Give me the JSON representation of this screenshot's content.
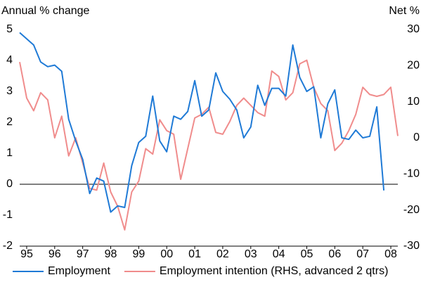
{
  "chart_data": {
    "type": "line",
    "ylabel": "Annual % change",
    "y2label": "Net %",
    "x": [
      1995.25,
      1995.5,
      1995.75,
      1996,
      1996.25,
      1996.5,
      1996.75,
      1997,
      1997.25,
      1997.5,
      1997.75,
      1998,
      1998.25,
      1998.5,
      1998.75,
      1999,
      1999.25,
      1999.5,
      1999.75,
      2000,
      2000.25,
      2000.5,
      2000.75,
      2001,
      2001.25,
      2001.5,
      2001.75,
      2002,
      2002.25,
      2002.5,
      2002.75,
      2003,
      2003.25,
      2003.5,
      2003.75,
      2004,
      2004.25,
      2004.5,
      2004.75,
      2005,
      2005.25,
      2005.5,
      2005.75,
      2006,
      2006.25,
      2006.5,
      2006.75,
      2007,
      2007.25,
      2007.5,
      2007.75,
      2008,
      2008.25,
      2008.5,
      2008.75
    ],
    "xlim": [
      1995.25,
      2008.75
    ],
    "xticks": [
      {
        "value": 1995.5,
        "label": "95"
      },
      {
        "value": 1996.5,
        "label": "96"
      },
      {
        "value": 1997.5,
        "label": "97"
      },
      {
        "value": 1998.5,
        "label": "98"
      },
      {
        "value": 1999.5,
        "label": "99"
      },
      {
        "value": 2000.5,
        "label": "00"
      },
      {
        "value": 2001.5,
        "label": "01"
      },
      {
        "value": 2002.5,
        "label": "02"
      },
      {
        "value": 2003.5,
        "label": "03"
      },
      {
        "value": 2004.5,
        "label": "04"
      },
      {
        "value": 2005.5,
        "label": "05"
      },
      {
        "value": 2006.5,
        "label": "06"
      },
      {
        "value": 2007.5,
        "label": "07"
      },
      {
        "value": 2008.5,
        "label": "08"
      }
    ],
    "ylim": [
      -2,
      5
    ],
    "yticks": [
      -2,
      -1,
      0,
      1,
      2,
      3,
      4,
      5
    ],
    "y2lim": [
      -30,
      30
    ],
    "y2ticks": [
      -30,
      -20,
      -10,
      0,
      10,
      20,
      30
    ],
    "zero_line": 0,
    "legend": "bottom",
    "series": [
      {
        "name": "Employment",
        "color": "#1f7ad6",
        "values": [
          4.9,
          4.7,
          4.5,
          3.95,
          3.8,
          3.85,
          3.65,
          2.1,
          1.4,
          0.8,
          -0.3,
          0.2,
          0.1,
          -0.9,
          -0.7,
          -0.75,
          0.6,
          1.35,
          1.55,
          2.85,
          1.4,
          1.05,
          2.2,
          2.1,
          2.35,
          3.35,
          2.2,
          2.4,
          3.6,
          3.0,
          2.75,
          2.4,
          1.5,
          1.85,
          3.2,
          2.55,
          3.1,
          3.1,
          2.85,
          4.5,
          3.45,
          3.0,
          3.15,
          1.5,
          2.6,
          3.05,
          1.5,
          1.45,
          1.75,
          1.5,
          1.55,
          2.5,
          -0.2,
          null,
          null
        ]
      },
      {
        "name": "Employment intention (RHS, advanced 2 qtrs)",
        "color": "#f08c8c",
        "axis": "y2",
        "values": [
          21,
          11,
          7.5,
          12.5,
          10.5,
          0,
          6,
          -5,
          0,
          -7,
          -14,
          -14.5,
          -7,
          -15,
          -19,
          -25.5,
          -15,
          -12,
          -3,
          -4.5,
          5,
          2,
          1,
          -11.5,
          -3,
          5.5,
          6.5,
          8.5,
          1.5,
          1,
          4.5,
          9,
          11,
          9,
          7,
          6,
          18.5,
          17,
          10.5,
          12.5,
          20.5,
          21.5,
          14,
          9.5,
          7.5,
          -3.5,
          -1.5,
          2,
          6.5,
          14,
          12,
          11.5,
          12,
          14,
          0.5
        ]
      }
    ]
  }
}
